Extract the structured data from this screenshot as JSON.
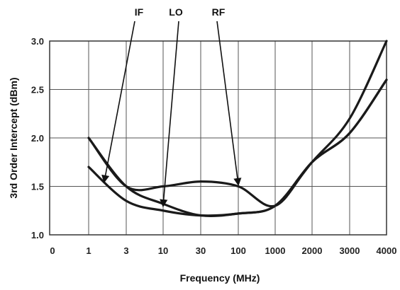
{
  "chart_data": {
    "type": "line",
    "title": "",
    "xlabel": "Frequency (MHz)",
    "ylabel": "3rd Order Intercept (dBm)",
    "x_tick_labels": [
      "0",
      "1",
      "3",
      "10",
      "30",
      "100",
      "1000",
      "2000",
      "3000",
      "4000"
    ],
    "y_tick_labels": [
      "1.0",
      "1.5",
      "2.0",
      "2.5",
      "3.0"
    ],
    "ylim": [
      1.0,
      3.0
    ],
    "y_ticks": [
      1.0,
      1.5,
      2.0,
      2.5,
      3.0
    ],
    "grid": true,
    "legend": "none",
    "series": [
      {
        "name": "IF",
        "x": [
          "1",
          "3",
          "10",
          "30",
          "100",
          "1000",
          "2000",
          "3000",
          "4000"
        ],
        "values": [
          1.7,
          1.35,
          1.25,
          1.2,
          1.22,
          1.3,
          1.75,
          2.05,
          2.6
        ]
      },
      {
        "name": "LO",
        "x": [
          "1",
          "3",
          "10",
          "30",
          "100",
          "1000",
          "2000",
          "3000",
          "4000"
        ],
        "values": [
          2.0,
          1.5,
          1.32,
          1.2,
          1.22,
          1.3,
          1.75,
          2.2,
          3.0
        ]
      },
      {
        "name": "RF",
        "x": [
          "1",
          "3",
          "10",
          "30",
          "100",
          "1000",
          "2000",
          "3000",
          "4000"
        ],
        "values": [
          2.0,
          1.5,
          1.5,
          1.55,
          1.5,
          1.3,
          1.75,
          2.05,
          2.6
        ]
      }
    ],
    "annotations": [
      {
        "text": "IF",
        "points_to": {
          "x": "1",
          "y": 1.55
        }
      },
      {
        "text": "LO",
        "points_to": {
          "x": "10",
          "y": 1.3
        }
      },
      {
        "text": "RF",
        "points_to": {
          "x": "100",
          "y": 1.52
        }
      }
    ]
  }
}
